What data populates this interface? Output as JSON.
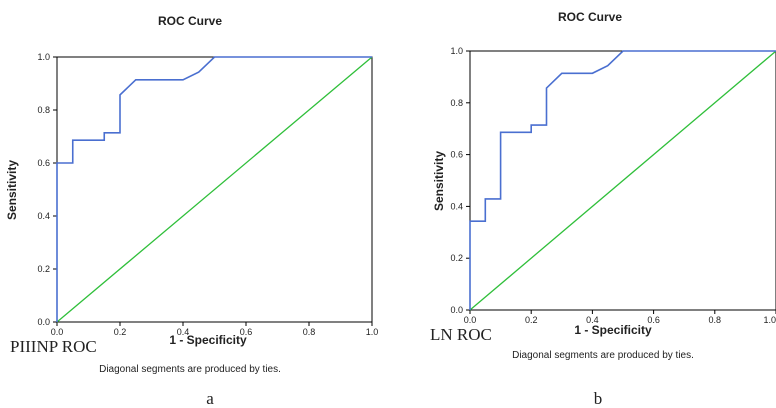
{
  "chart_data": [
    {
      "type": "line",
      "title": "ROC Curve",
      "xlabel": "1 - Specificity",
      "ylabel": "Sensitivity",
      "xlim": [
        0,
        1
      ],
      "ylim": [
        0,
        1
      ],
      "x_ticks": [
        "0.0",
        "0.2",
        "0.4",
        "0.6",
        "0.8",
        "1.0"
      ],
      "y_ticks": [
        "0.0",
        "0.2",
        "0.4",
        "0.6",
        "0.8",
        "1.0"
      ],
      "grid": false,
      "legend": "none",
      "caption": "PIIINP ROC",
      "footnote": "Diagonal segments are produced by ties.",
      "panel_label": "a",
      "colors": {
        "curve": "#4a6fd0",
        "reference": "#2fbf3a"
      },
      "series": [
        {
          "x": [
            0.0,
            0.0,
            0.05,
            0.05,
            0.15,
            0.15,
            0.2,
            0.2,
            0.25,
            0.25,
            0.4,
            0.4,
            0.45,
            0.5,
            1.0
          ],
          "y": [
            0.0,
            0.6,
            0.6,
            0.686,
            0.686,
            0.714,
            0.714,
            0.857,
            0.914,
            0.914,
            0.914,
            0.914,
            0.943,
            1.0,
            1.0
          ]
        },
        {
          "x": [
            0,
            1
          ],
          "y": [
            0,
            1
          ]
        }
      ]
    },
    {
      "type": "line",
      "title": "ROC Curve",
      "xlabel": "1 - Specificity",
      "ylabel": "Sensitivity",
      "xlim": [
        0,
        1
      ],
      "ylim": [
        0,
        1
      ],
      "x_ticks": [
        "0.0",
        "0.2",
        "0.4",
        "0.6",
        "0.8",
        "1.0"
      ],
      "y_ticks": [
        "0.0",
        "0.2",
        "0.4",
        "0.6",
        "0.8",
        "1.0"
      ],
      "grid": false,
      "legend": "none",
      "caption": "LN ROC",
      "footnote": "Diagonal segments are produced by ties.",
      "panel_label": "b",
      "colors": {
        "curve": "#4a6fd0",
        "reference": "#2fbf3a"
      },
      "series": [
        {
          "x": [
            0.0,
            0.0,
            0.05,
            0.05,
            0.1,
            0.1,
            0.2,
            0.2,
            0.25,
            0.25,
            0.3,
            0.4,
            0.45,
            0.5,
            1.0
          ],
          "y": [
            0.0,
            0.343,
            0.343,
            0.429,
            0.429,
            0.686,
            0.686,
            0.714,
            0.714,
            0.857,
            0.914,
            0.914,
            0.943,
            1.0,
            1.0
          ]
        },
        {
          "x": [
            0,
            1
          ],
          "y": [
            0,
            1
          ]
        }
      ]
    }
  ]
}
